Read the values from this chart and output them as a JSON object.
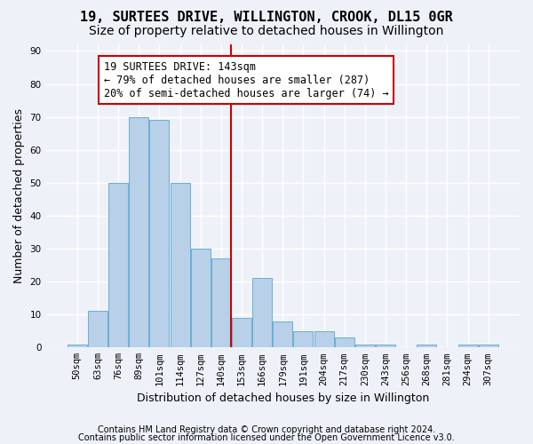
{
  "title": "19, SURTEES DRIVE, WILLINGTON, CROOK, DL15 0GR",
  "subtitle": "Size of property relative to detached houses in Willington",
  "xlabel": "Distribution of detached houses by size in Willington",
  "ylabel": "Number of detached properties",
  "bar_labels": [
    "50sqm",
    "63sqm",
    "76sqm",
    "89sqm",
    "101sqm",
    "114sqm",
    "127sqm",
    "140sqm",
    "153sqm",
    "166sqm",
    "179sqm",
    "191sqm",
    "204sqm",
    "217sqm",
    "230sqm",
    "243sqm",
    "256sqm",
    "268sqm",
    "281sqm",
    "294sqm",
    "307sqm"
  ],
  "bar_values": [
    1,
    11,
    50,
    70,
    69,
    50,
    30,
    27,
    9,
    21,
    8,
    5,
    5,
    3,
    1,
    1,
    0,
    1,
    0,
    1,
    1
  ],
  "bar_color": "#b8d0e8",
  "bar_edge_color": "#6aaed6",
  "annotation_title": "19 SURTEES DRIVE: 143sqm",
  "annotation_line1": "← 79% of detached houses are smaller (287)",
  "annotation_line2": "20% of semi-detached houses are larger (74) →",
  "annotation_box_color": "#cc0000",
  "vline_x": 7.5,
  "ylim": [
    0,
    92
  ],
  "yticks": [
    0,
    10,
    20,
    30,
    40,
    50,
    60,
    70,
    80,
    90
  ],
  "footnote1": "Contains HM Land Registry data © Crown copyright and database right 2024.",
  "footnote2": "Contains public sector information licensed under the Open Government Licence v3.0.",
  "background_color": "#eef2f8",
  "grid_color": "#ffffff",
  "title_fontsize": 11,
  "subtitle_fontsize": 10,
  "axis_label_fontsize": 9,
  "tick_fontsize": 7.5,
  "annotation_fontsize": 8.5,
  "footnote_fontsize": 7
}
